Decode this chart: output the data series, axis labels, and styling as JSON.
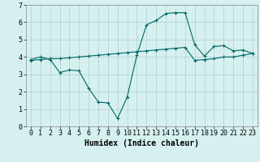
{
  "title": "",
  "xlabel": "Humidex (Indice chaleur)",
  "bg_color": "#d6f0f0",
  "line_color": "#006666",
  "xlim": [
    -0.5,
    23.5
  ],
  "ylim": [
    0,
    7
  ],
  "yticks": [
    0,
    1,
    2,
    3,
    4,
    5,
    6,
    7
  ],
  "xticks": [
    0,
    1,
    2,
    3,
    4,
    5,
    6,
    7,
    8,
    9,
    10,
    11,
    12,
    13,
    14,
    15,
    16,
    17,
    18,
    19,
    20,
    21,
    22,
    23
  ],
  "line1_x": [
    0,
    1,
    2,
    3,
    4,
    5,
    6,
    7,
    8,
    9,
    10,
    11,
    12,
    13,
    14,
    15,
    16,
    17,
    18,
    19,
    20,
    21,
    22,
    23
  ],
  "line1_y": [
    3.85,
    4.0,
    3.85,
    3.1,
    3.25,
    3.2,
    2.2,
    1.4,
    1.35,
    0.45,
    1.7,
    4.1,
    5.85,
    6.1,
    6.5,
    6.55,
    6.55,
    4.7,
    4.05,
    4.6,
    4.65,
    4.35,
    4.4,
    4.2
  ],
  "line2_x": [
    0,
    1,
    2,
    3,
    4,
    5,
    6,
    7,
    8,
    9,
    10,
    11,
    12,
    13,
    14,
    15,
    16,
    17,
    18,
    19,
    20,
    21,
    22,
    23
  ],
  "line2_y": [
    3.8,
    3.85,
    3.9,
    3.9,
    3.95,
    4.0,
    4.05,
    4.1,
    4.15,
    4.2,
    4.25,
    4.3,
    4.35,
    4.4,
    4.45,
    4.5,
    4.55,
    3.8,
    3.85,
    3.9,
    4.0,
    4.0,
    4.1,
    4.2
  ],
  "marker": "+",
  "markersize": 3,
  "linewidth": 0.8,
  "grid_color": "#b0cece",
  "xlabel_fontsize": 7,
  "tick_fontsize": 6
}
